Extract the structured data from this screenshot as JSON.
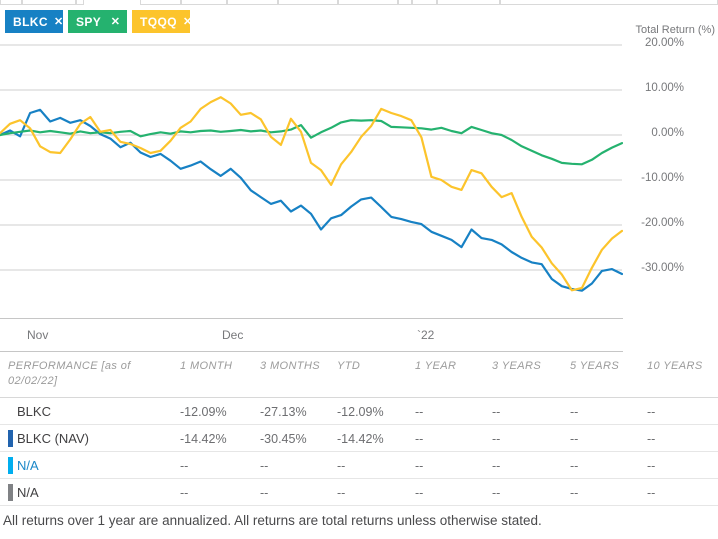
{
  "tickers": [
    {
      "label": "BLKC",
      "color": "#1781c4",
      "close_icon": "✕"
    },
    {
      "label": "SPY",
      "color": "#25b26f",
      "close_icon": "✕"
    },
    {
      "label": "TQQQ",
      "color": "#fcc42c",
      "close_icon": "✕"
    }
  ],
  "chart_data": {
    "type": "line",
    "title": "",
    "ylabel": "Total Return (%)",
    "ylim": [
      -40,
      25
    ],
    "grid": true,
    "legend_position": "none",
    "x_axis_labels": [
      "Nov",
      "Dec",
      "`22"
    ],
    "yticks": [
      {
        "label": "20.00%",
        "value": 20
      },
      {
        "label": "10.00%",
        "value": 10
      },
      {
        "label": "0.00%",
        "value": 0
      },
      {
        "label": "-10.00%",
        "value": -10
      },
      {
        "label": "-20.00%",
        "value": -20
      },
      {
        "label": "-30.00%",
        "value": -30
      }
    ],
    "series": [
      {
        "name": "BLKC",
        "color": "#1781c4",
        "values": [
          0,
          1.0,
          -0.3,
          4.9,
          5.6,
          3.0,
          3.8,
          2.7,
          3.3,
          2.0,
          0.2,
          -0.8,
          -2.7,
          -1.7,
          -3.9,
          -4.9,
          -4.2,
          -5.7,
          -7.5,
          -6.8,
          -5.9,
          -7.6,
          -9.1,
          -7.5,
          -9.5,
          -12.3,
          -13.8,
          -15.3,
          -14.6,
          -17.0,
          -15.7,
          -17.5,
          -21.0,
          -18.5,
          -17.8,
          -15.9,
          -14.3,
          -13.9,
          -16.0,
          -18.2,
          -18.7,
          -19.3,
          -19.8,
          -21.5,
          -22.4,
          -23.3,
          -24.9,
          -21.0,
          -22.9,
          -23.3,
          -24.3,
          -26.0,
          -27.3,
          -28.3,
          -28.7,
          -32.0,
          -33.6,
          -34.2,
          -34.6,
          -33.0,
          -30.2,
          -29.8,
          -30.9
        ]
      },
      {
        "name": "SPY",
        "color": "#25b26f",
        "values": [
          0,
          0.4,
          0.7,
          1.0,
          0.6,
          0.9,
          0.6,
          0.3,
          0.8,
          0.4,
          0.6,
          0.4,
          0.7,
          0.9,
          -0.3,
          0.2,
          0.6,
          0.3,
          0.8,
          0.6,
          0.9,
          1.0,
          0.7,
          0.9,
          1.1,
          0.8,
          1.0,
          0.6,
          0.8,
          1.2,
          2.2,
          -0.6,
          0.6,
          1.6,
          2.8,
          3.3,
          3.2,
          3.3,
          3.1,
          1.8,
          1.7,
          1.6,
          1.5,
          1.2,
          1.6,
          0.9,
          0.4,
          1.8,
          1.1,
          0.4,
          0.0,
          -1.1,
          -2.5,
          -3.5,
          -4.5,
          -5.3,
          -6.2,
          -6.4,
          -6.5,
          -5.5,
          -4.0,
          -2.8,
          -1.8
        ]
      },
      {
        "name": "TQQQ",
        "color": "#fcc42c",
        "values": [
          0.4,
          2.5,
          3.3,
          1.5,
          -2.5,
          -3.8,
          -4.0,
          -1.0,
          2.5,
          4.0,
          0.7,
          1.1,
          -1.5,
          -2.0,
          -2.9,
          -4.0,
          -3.5,
          -1.3,
          1.6,
          3.0,
          5.8,
          7.3,
          8.4,
          7.0,
          4.5,
          4.9,
          3.5,
          -0.4,
          -2.2,
          3.6,
          0.7,
          -6.2,
          -7.8,
          -11.1,
          -6.5,
          -3.8,
          -0.4,
          2.0,
          5.8,
          4.9,
          4.2,
          3.3,
          -0.5,
          -9.3,
          -10.0,
          -11.5,
          -12.2,
          -7.8,
          -8.5,
          -11.5,
          -13.8,
          -12.9,
          -18.2,
          -22.6,
          -25.0,
          -28.5,
          -31.0,
          -34.5,
          -34.0,
          -29.5,
          -25.5,
          -23.0,
          -21.3
        ]
      }
    ]
  },
  "table": {
    "header_label": "PERFORMANCE [as of 02/02/22]",
    "columns": [
      "1 MONTH",
      "3 MONTHS",
      "YTD",
      "1 YEAR",
      "3 YEARS",
      "5 YEARS",
      "10 YEARS"
    ],
    "rows": [
      {
        "label": "BLKC",
        "marker_color": "transparent",
        "label_color": "#414042",
        "values": [
          "-12.09%",
          "-27.13%",
          "-12.09%",
          "--",
          "--",
          "--",
          "--"
        ]
      },
      {
        "label": "BLKC (NAV)",
        "marker_color": "#2163ae",
        "label_color": "#414042",
        "values": [
          "-14.42%",
          "-30.45%",
          "-14.42%",
          "--",
          "--",
          "--",
          "--"
        ]
      },
      {
        "label": "N/A",
        "marker_color": "#00aeef",
        "label_color": "#1a87c8",
        "values": [
          "--",
          "--",
          "--",
          "--",
          "--",
          "--",
          "--"
        ]
      },
      {
        "label": "N/A",
        "marker_color": "#808285",
        "label_color": "#414042",
        "values": [
          "--",
          "--",
          "--",
          "--",
          "--",
          "--",
          "--"
        ]
      }
    ]
  },
  "footnote": "All returns over 1 year are annualized. All returns are total returns unless otherwise stated."
}
